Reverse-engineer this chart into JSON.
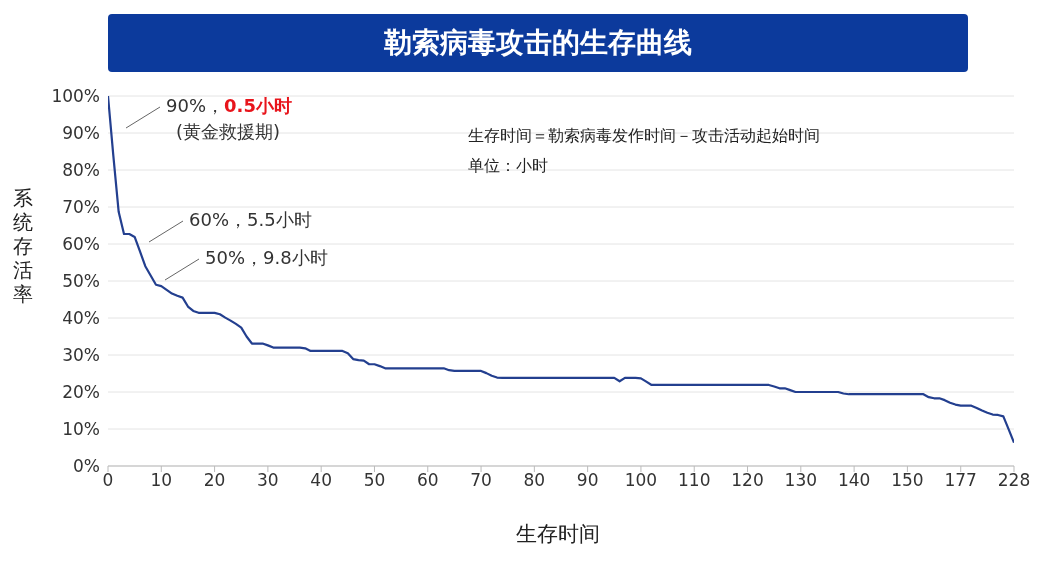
{
  "chart_data": {
    "type": "line",
    "title": "勒索病毒攻击的生存曲线",
    "xlabel": "生存时间",
    "ylabel": "系统存活率",
    "categories": [
      "0",
      null,
      null,
      null,
      null,
      null,
      null,
      null,
      null,
      null,
      "10",
      null,
      null,
      null,
      null,
      null,
      null,
      null,
      null,
      null,
      "20",
      null,
      null,
      null,
      null,
      null,
      null,
      null,
      null,
      null,
      "30",
      null,
      null,
      null,
      null,
      null,
      null,
      null,
      null,
      null,
      "40",
      null,
      null,
      null,
      null,
      null,
      null,
      null,
      null,
      null,
      "50",
      null,
      null,
      null,
      null,
      null,
      null,
      null,
      null,
      null,
      "60",
      null,
      null,
      null,
      null,
      null,
      null,
      null,
      null,
      null,
      "70",
      null,
      null,
      null,
      null,
      null,
      null,
      null,
      null,
      null,
      "80",
      null,
      null,
      null,
      null,
      null,
      null,
      null,
      null,
      null,
      "90",
      null,
      null,
      null,
      null,
      null,
      null,
      null,
      null,
      null,
      "100",
      null,
      null,
      null,
      null,
      null,
      null,
      null,
      null,
      null,
      "110",
      null,
      null,
      null,
      null,
      null,
      null,
      null,
      null,
      null,
      "120",
      null,
      null,
      null,
      null,
      null,
      null,
      null,
      null,
      null,
      "130",
      null,
      null,
      null,
      null,
      null,
      null,
      null,
      null,
      null,
      "140",
      null,
      null,
      null,
      null,
      null,
      null,
      null,
      null,
      null,
      "150",
      null,
      null,
      null,
      null,
      null,
      null,
      null,
      null,
      null,
      "177",
      null,
      null,
      null,
      null,
      null,
      null,
      null,
      null,
      null,
      "228"
    ],
    "series": [
      {
        "color": "#233f8f",
        "values": [
          100,
          83.9,
          68.7,
          62.7,
          62.7,
          61.9,
          58.0,
          54,
          51.5,
          49,
          48.6,
          47.6,
          46.6,
          46,
          45.5,
          43.1,
          41.9,
          41.4,
          41.4,
          41.4,
          41.4,
          41.0,
          40.1,
          39.3,
          38.4,
          37.4,
          35.0,
          33.1,
          33.1,
          33.1,
          32.6,
          32,
          32,
          32,
          32,
          32,
          32,
          31.8,
          31.1,
          31.1,
          31.1,
          31.1,
          31.1,
          31.1,
          31.1,
          30.5,
          28.9,
          28.6,
          28.5,
          27.5,
          27.5,
          27.0,
          26.4,
          26.4,
          26.4,
          26.4,
          26.4,
          26.4,
          26.4,
          26.4,
          26.4,
          26.4,
          26.4,
          26.4,
          25.9,
          25.7,
          25.7,
          25.7,
          25.7,
          25.7,
          25.7,
          25.1,
          24.4,
          23.9,
          23.8,
          23.8,
          23.8,
          23.8,
          23.8,
          23.8,
          23.8,
          23.8,
          23.8,
          23.8,
          23.8,
          23.8,
          23.8,
          23.8,
          23.8,
          23.8,
          23.8,
          23.8,
          23.8,
          23.8,
          23.8,
          23.8,
          22.9,
          23.8,
          23.8,
          23.8,
          23.7,
          22.8,
          21.9,
          21.9,
          21.9,
          21.9,
          21.9,
          21.9,
          21.9,
          21.9,
          21.9,
          21.9,
          21.9,
          21.9,
          21.9,
          21.9,
          21.9,
          21.9,
          21.9,
          21.9,
          21.9,
          21.9,
          21.9,
          21.9,
          21.9,
          21.5,
          21,
          21,
          20.5,
          20,
          20,
          20,
          20,
          20,
          20,
          20,
          20,
          20,
          19.6,
          19.4,
          19.4,
          19.4,
          19.4,
          19.4,
          19.4,
          19.4,
          19.4,
          19.4,
          19.4,
          19.4,
          19.4,
          19.4,
          19.4,
          19.4,
          18.6,
          18.3,
          18.3,
          17.8,
          17.1,
          16.6,
          16.3,
          16.3,
          16.3,
          15.7,
          15.0,
          14.4,
          13.9,
          13.8,
          13.4,
          9.9,
          6.3
        ]
      }
    ],
    "ylim": [
      0,
      100
    ],
    "yticks": [
      {
        "value": 0,
        "label": "0%"
      },
      {
        "value": 10,
        "label": "10%"
      },
      {
        "value": 20,
        "label": "20%"
      },
      {
        "value": 30,
        "label": "30%"
      },
      {
        "value": 40,
        "label": "40%"
      },
      {
        "value": 50,
        "label": "50%"
      },
      {
        "value": 60,
        "label": "60%"
      },
      {
        "value": 70,
        "label": "70%"
      },
      {
        "value": 80,
        "label": "80%"
      },
      {
        "value": 90,
        "label": "90%"
      },
      {
        "value": 100,
        "label": "100%"
      }
    ],
    "grid": "y",
    "marker": "none",
    "line_style": "solid",
    "annotations": [
      "90%，0.5小时\n(黄金救援期)",
      "60%，5.5小时",
      "50%，9.8小时",
      "生存时间＝勒索病毒发作时间－攻击活动起始时间",
      "单位：小时"
    ]
  }
}
